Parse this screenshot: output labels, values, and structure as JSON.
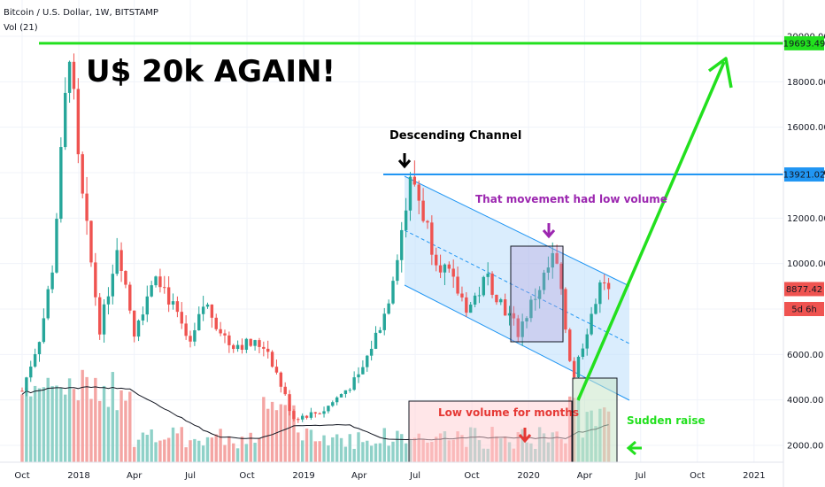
{
  "header": {
    "symbol_line": "Bitcoin / U.S. Dollar, 1W, BITSTAMP",
    "volume_line": "Vol (21)"
  },
  "colors": {
    "up": "#26a69a",
    "down": "#ef5350",
    "vol_up": "#8fd1c8",
    "vol_down": "#f4a5a3",
    "green_line": "#22e01e",
    "blue_line": "#2196f3",
    "channel_fill": "#bbdefb",
    "purple": "#9c27b0",
    "red_text": "#e53935",
    "text": "#131722"
  },
  "chart_data": {
    "type": "candlestick",
    "title": "Bitcoin / U.S. Dollar, 1W, BITSTAMP",
    "indicator": "Vol (21)",
    "x_range": [
      "2017-09-25",
      "2021-02-01"
    ],
    "y_range": [
      1600,
      21200
    ],
    "x_tick_labels": [
      "Oct",
      "2018",
      "Apr",
      "Jul",
      "Oct",
      "2019",
      "Apr",
      "Jul",
      "Oct",
      "2020",
      "Apr",
      "Jul",
      "Oct",
      "2021"
    ],
    "y_tick_labels": [
      "2000.00",
      "4000.00",
      "6000.00",
      "8000.00",
      "10000.00",
      "12000.00",
      "14000.00",
      "16000.00",
      "18000.00",
      "20000.00"
    ],
    "price_labels": [
      {
        "value": 19693.49,
        "text": "19693.49",
        "color": "#22e01e"
      },
      {
        "value": 13921.02,
        "text": "13921.02",
        "color": "#2196f3"
      },
      {
        "value": 8877.42,
        "text": "8877.42",
        "color": "#ef5350"
      },
      {
        "value": 8000,
        "text": "5d 6h",
        "color": "#ef5350"
      }
    ],
    "price_series": [
      {
        "date": "2017-10-01",
        "close": 4400
      },
      {
        "date": "2017-11-01",
        "close": 7000
      },
      {
        "date": "2017-11-20",
        "close": 10000
      },
      {
        "date": "2017-12-17",
        "close": 19600
      },
      {
        "date": "2018-01-01",
        "close": 14000
      },
      {
        "date": "2018-02-05",
        "close": 7000
      },
      {
        "date": "2018-03-05",
        "close": 11000
      },
      {
        "date": "2018-04-01",
        "close": 7000
      },
      {
        "date": "2018-05-06",
        "close": 9800
      },
      {
        "date": "2018-07-01",
        "close": 6300
      },
      {
        "date": "2018-07-24",
        "close": 8300
      },
      {
        "date": "2018-09-01",
        "close": 6500
      },
      {
        "date": "2018-11-01",
        "close": 6400
      },
      {
        "date": "2018-12-15",
        "close": 3200
      },
      {
        "date": "2019-02-01",
        "close": 3500
      },
      {
        "date": "2019-04-01",
        "close": 5000
      },
      {
        "date": "2019-05-15",
        "close": 8000
      },
      {
        "date": "2019-06-26",
        "close": 13900
      },
      {
        "date": "2019-08-01",
        "close": 10500
      },
      {
        "date": "2019-09-25",
        "close": 8000
      },
      {
        "date": "2019-10-26",
        "close": 9400
      },
      {
        "date": "2019-12-15",
        "close": 7000
      },
      {
        "date": "2020-02-13",
        "close": 10400
      },
      {
        "date": "2020-03-13",
        "close": 4900
      },
      {
        "date": "2020-04-01",
        "close": 6800
      },
      {
        "date": "2020-04-30",
        "close": 9400
      },
      {
        "date": "2020-05-12",
        "close": 8877
      }
    ],
    "annotations": {
      "headline": "U$ 20k AGAIN!",
      "channel_label": "Descending Channel",
      "low_volume_movement": "That movement had low volume",
      "low_volume_months": "Low volume for months",
      "sudden_raise": "Sudden raise"
    },
    "levels": [
      {
        "name": "resistance-20k",
        "value": 19693.49
      },
      {
        "name": "channel-top",
        "value": 13921.02
      }
    ]
  }
}
